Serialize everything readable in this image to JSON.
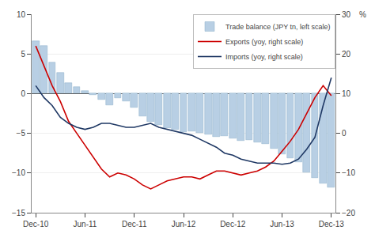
{
  "chart_data": {
    "type": "bar",
    "categories": [
      "Dec-10",
      null,
      null,
      null,
      null,
      null,
      "Jun-11",
      null,
      null,
      null,
      null,
      null,
      "Dec-11",
      null,
      null,
      null,
      null,
      null,
      "Jun-12",
      null,
      null,
      null,
      null,
      null,
      "Dec-12",
      null,
      null,
      null,
      null,
      null,
      "Jun-13",
      null,
      null,
      null,
      null,
      null,
      "Dec-13"
    ],
    "series": [
      {
        "name": "Trade balance (JPY tn, left scale)",
        "type": "bar",
        "color": "#b8cfe4",
        "values": [
          6.6,
          6.0,
          3.9,
          2.6,
          1.3,
          0.8,
          0.3,
          -0.2,
          -0.8,
          -1.5,
          -0.6,
          -1.0,
          -1.8,
          -2.8,
          -3.5,
          -3.9,
          -4.3,
          -4.5,
          -4.8,
          -4.7,
          -4.9,
          -5.1,
          -5.4,
          -5.3,
          -5.6,
          -5.9,
          -5.8,
          -6.1,
          -6.3,
          -6.9,
          -7.6,
          -8.1,
          -8.6,
          -9.9,
          -10.6,
          -11.3,
          -11.8
        ]
      },
      {
        "name": "Exports (yoy, right scale)",
        "type": "line",
        "axis": "y2",
        "color": "#cc0000",
        "values": [
          22,
          17,
          12,
          8,
          3,
          0,
          -3,
          -6,
          -9,
          -11,
          -10,
          -10.5,
          -11.5,
          -13,
          -14,
          -13,
          -12,
          -11.5,
          -11,
          -11,
          -11.5,
          -10.5,
          -9.5,
          -9.5,
          -10,
          -10.5,
          -10,
          -9.5,
          -8.5,
          -7,
          -4.5,
          -2,
          1,
          5,
          9,
          12,
          9.5
        ]
      },
      {
        "name": "Imports (yoy, right scale)",
        "type": "line",
        "axis": "y2",
        "color": "#1f3864",
        "values": [
          12,
          9,
          7,
          4,
          2.5,
          1.5,
          1,
          1.5,
          2.5,
          2.5,
          2,
          1.5,
          1.5,
          2,
          2.5,
          1.5,
          1,
          0.5,
          0,
          -0.5,
          -1.5,
          -2.5,
          -3.5,
          -5,
          -5.5,
          -6.5,
          -7,
          -7.5,
          -7.5,
          -7.5,
          -7.8,
          -7.5,
          -6.5,
          -4,
          -1,
          7,
          14
        ]
      }
    ],
    "ylim": [
      -15,
      10
    ],
    "yticks": [
      -15,
      -10,
      -5,
      0,
      5,
      10
    ],
    "y2lim": [
      -20,
      30
    ],
    "y2ticks": [
      -20,
      -10,
      0,
      10,
      20,
      30
    ],
    "annotations": [
      "%"
    ],
    "grid": true,
    "legend": "upper right"
  }
}
